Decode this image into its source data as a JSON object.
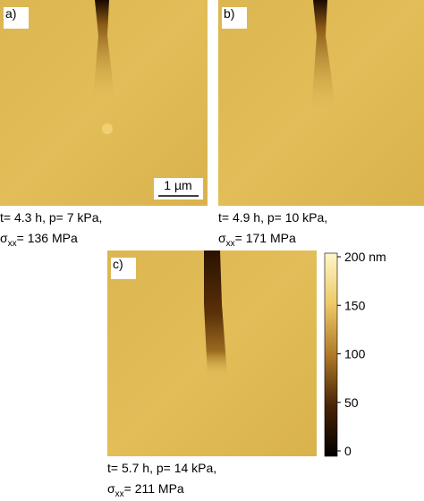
{
  "panels": [
    {
      "label": "a)",
      "line1": "t= 4.3 h, p= 7 kPa,",
      "symbol": "σ",
      "subscript": "xx",
      "line2": "= 136 MPa"
    },
    {
      "label": "b)",
      "line1": "t= 4.9 h, p= 10 kPa,",
      "symbol": "σ",
      "subscript": "xx",
      "line2": "= 171 MPa"
    },
    {
      "label": "c)",
      "line1": "t= 5.7 h, p= 14 kPa,",
      "symbol": "σ",
      "subscript": "xx",
      "line2": "= 211 MPa"
    }
  ],
  "scale_bar": "1 µm",
  "colorbar": {
    "ticks": [
      {
        "value": 200,
        "label": "200 nm"
      },
      150,
      100,
      50,
      0
    ]
  }
}
